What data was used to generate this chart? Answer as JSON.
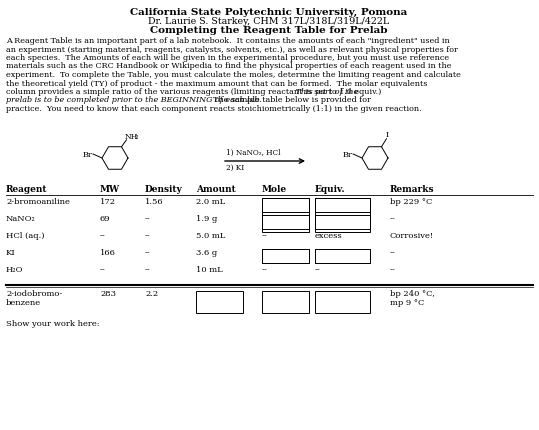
{
  "title1": "California State Polytechnic University, Pomona",
  "title2": "Dr. Laurie S. Starkey, CHM 317L/318L/319L/422L",
  "title3": "Completing the Reagent Table for Prelab",
  "col_headers": [
    "Reagent",
    "MW",
    "Density",
    "Amount",
    "Mole",
    "Equiv.",
    "Remarks"
  ],
  "reagents": [
    {
      "name": "2-bromoaniline",
      "mw": "172",
      "density": "1.56",
      "amount": "2.0 mL",
      "mole": "--",
      "equiv": "--",
      "remarks": "bp 229 °C",
      "box_mole": true,
      "box_equiv": true
    },
    {
      "name": "NaNO₂",
      "mw": "69",
      "density": "--",
      "amount": "1.9 g",
      "mole": "--",
      "equiv": "--",
      "remarks": "--",
      "box_mole": true,
      "box_equiv": true
    },
    {
      "name": "HCl (aq.)",
      "mw": "--",
      "density": "--",
      "amount": "5.0 mL",
      "mole": "--",
      "equiv": "excess",
      "remarks": "Corrosive!",
      "box_mole": false,
      "box_equiv": false
    },
    {
      "name": "KI",
      "mw": "166",
      "density": "--",
      "amount": "3.6 g",
      "mole": "--",
      "equiv": "--",
      "remarks": "--",
      "box_mole": true,
      "box_equiv": true
    },
    {
      "name": "H₂O",
      "mw": "--",
      "density": "--",
      "amount": "10 mL",
      "mole": "--",
      "equiv": "--",
      "remarks": "--",
      "box_mole": false,
      "box_equiv": false
    }
  ],
  "product": {
    "name": "2-iodobromo-\nbenzene",
    "mw": "283",
    "density": "2.2",
    "remarks": "bp 240 °C,\nmp 9 °C"
  },
  "show_work": "Show your work here:",
  "bg_color": "#ffffff",
  "text_color": "#000000"
}
